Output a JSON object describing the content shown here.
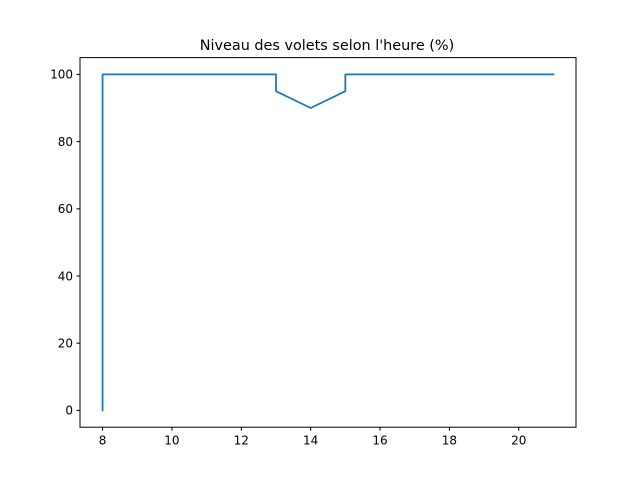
{
  "chart_data": {
    "type": "line",
    "title": "Niveau des volets selon l'heure (%)",
    "xlabel": "",
    "ylabel": "",
    "xlim": [
      7.35,
      21.65
    ],
    "ylim": [
      -5,
      105
    ],
    "xticks": [
      8,
      10,
      12,
      14,
      16,
      18,
      20
    ],
    "yticks": [
      0,
      20,
      40,
      60,
      80,
      100
    ],
    "grid": false,
    "series": [
      {
        "color": "#1f77b4",
        "x": [
          8,
          8,
          13,
          13,
          14,
          15,
          15,
          21
        ],
        "y": [
          0,
          100,
          100,
          95,
          90,
          95,
          100,
          100
        ]
      }
    ]
  }
}
